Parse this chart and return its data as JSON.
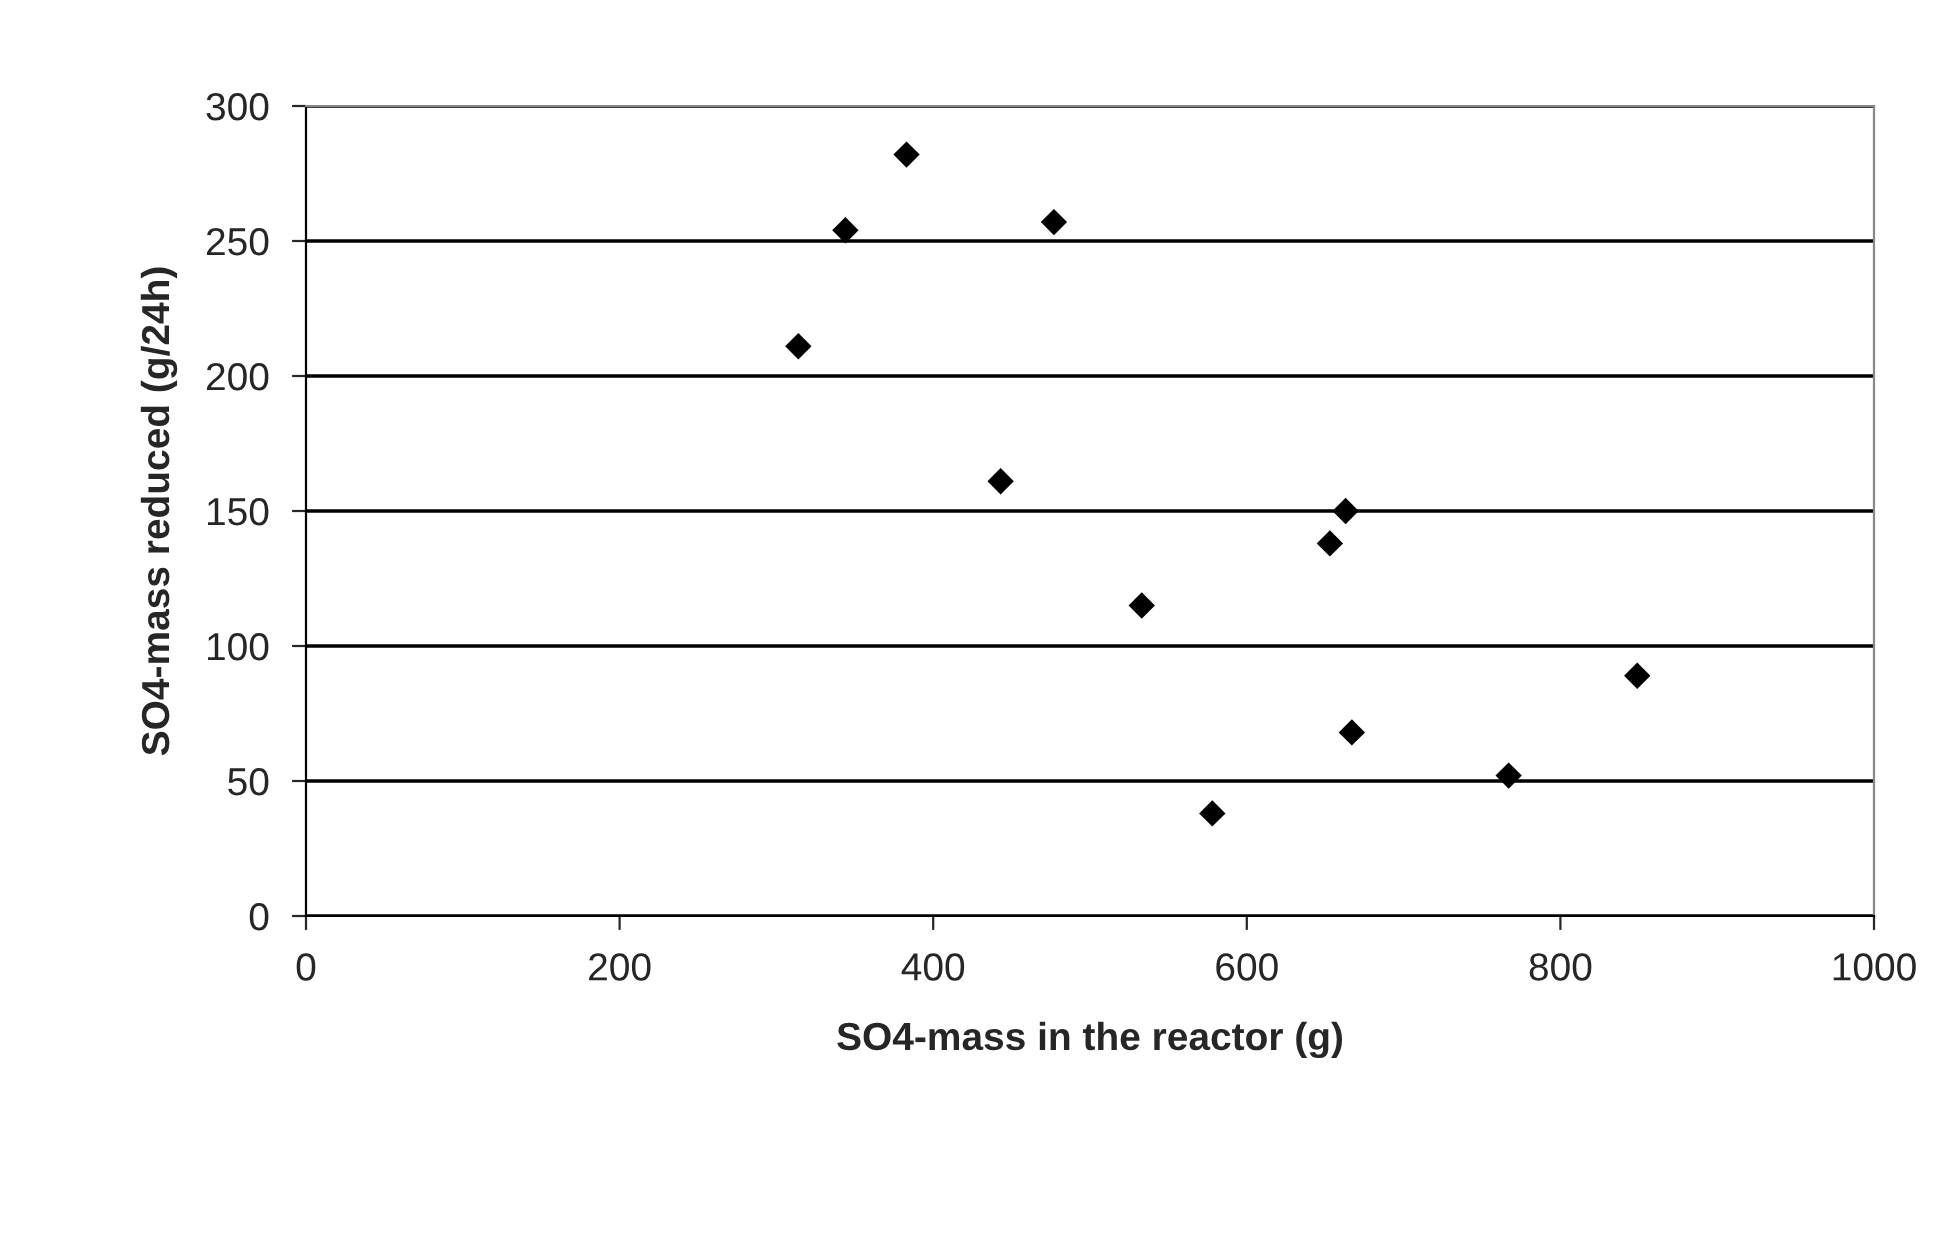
{
  "chart_data": {
    "type": "scatter",
    "xlabel": "SO4-mass in the reactor (g)",
    "ylabel": "SO4-mass reduced (g/24h)",
    "x": [
      314,
      344,
      383,
      477,
      443,
      533,
      663,
      653,
      578,
      667,
      767,
      849
    ],
    "values": [
      211,
      254,
      282,
      257,
      161,
      115,
      150,
      138,
      38,
      68,
      52,
      89
    ],
    "color": "#000000",
    "marker": "diamond",
    "xlim": [
      0,
      1000
    ],
    "xticks": [
      0,
      200,
      400,
      600,
      800,
      1000
    ],
    "ylim": [
      0,
      300
    ],
    "yticks": [
      0,
      50,
      100,
      150,
      200,
      250,
      300
    ],
    "grid": "y",
    "legend": false
  }
}
